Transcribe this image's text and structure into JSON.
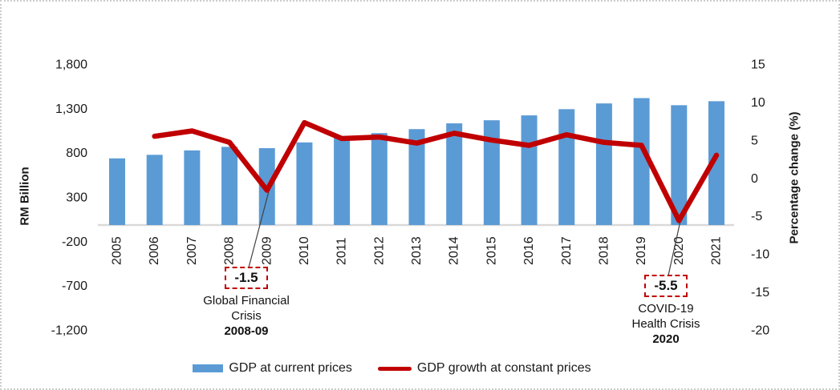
{
  "colors": {
    "bar": "#5B9BD5",
    "line": "#C00000",
    "annotation_border": "#C00000",
    "axis_line": "#D9D9D9",
    "text": "#1a1a1a"
  },
  "chart_data": {
    "type": "combo-bar-line",
    "categories": [
      "2005",
      "2006",
      "2007",
      "2008",
      "2009",
      "2010",
      "2011",
      "2012",
      "2013",
      "2014",
      "2015",
      "2016",
      "2017",
      "2018",
      "2019",
      "2020",
      "2021"
    ],
    "series": [
      {
        "name": "GDP at current prices",
        "type": "bar",
        "axis": "left",
        "color": "#5B9BD5",
        "values": [
          745,
          785,
          835,
          875,
          860,
          925,
          975,
          1030,
          1075,
          1140,
          1175,
          1230,
          1300,
          1365,
          1425,
          1345,
          1390
        ]
      },
      {
        "name": "GDP growth at constant prices",
        "type": "line",
        "axis": "right",
        "color": "#C00000",
        "values": [
          null,
          5.6,
          6.3,
          4.8,
          -1.5,
          7.4,
          5.3,
          5.5,
          4.7,
          6.0,
          5.1,
          4.4,
          5.8,
          4.8,
          4.4,
          -5.5,
          3.1
        ]
      }
    ],
    "left_axis": {
      "title": "RM Billion",
      "min": -1200,
      "max": 1800,
      "tick_labels": [
        "1,800",
        "1,300",
        "800",
        "300",
        "-200",
        "-700",
        "-1,200"
      ],
      "tick_values": [
        1800,
        1300,
        800,
        300,
        -200,
        -700,
        -1200
      ]
    },
    "right_axis": {
      "title": "Percentage change (%)",
      "min": -20,
      "max": 15,
      "tick_labels": [
        "15",
        "10",
        "5",
        "0",
        "-5",
        "-10",
        "-15",
        "-20"
      ],
      "tick_values": [
        15,
        10,
        5,
        0,
        -5,
        -10,
        -15,
        -20
      ]
    },
    "legend": [
      {
        "label": "GDP at current prices",
        "swatch": "bar"
      },
      {
        "label": "GDP growth at constant prices",
        "swatch": "line"
      }
    ],
    "annotations": [
      {
        "value_label": "-1.5",
        "text_lines": [
          "Global Financial",
          "Crisis"
        ],
        "bold_line": "2008-09",
        "anchor_year": "2009",
        "anchor_value": -1.5
      },
      {
        "value_label": "-5.5",
        "text_lines": [
          "COVID-19",
          "Health Crisis"
        ],
        "bold_line": "2020",
        "anchor_year": "2020",
        "anchor_value": -5.5
      }
    ],
    "grid": "off",
    "legend_position": "bottom"
  }
}
